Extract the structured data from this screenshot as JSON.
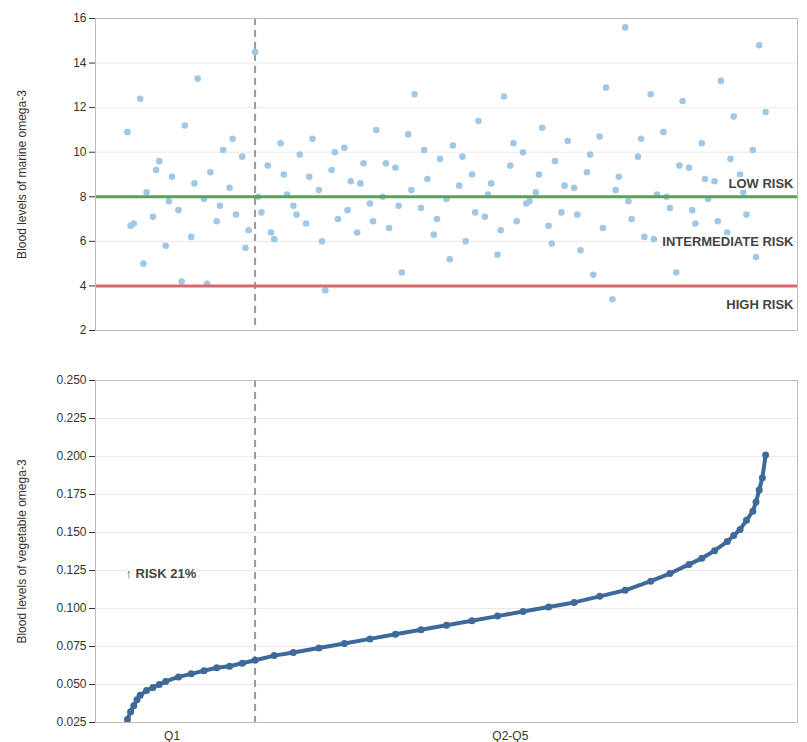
{
  "chart_data": [
    {
      "type": "scatter",
      "y_label": "Blood levels of marine omega-3",
      "marker": "circle",
      "color": "#9fc8e6",
      "grid": true,
      "tick_labels": "y",
      "xlim": [
        -5,
        105
      ],
      "ylim": [
        2,
        16
      ],
      "yticks": [
        2,
        4,
        6,
        8,
        10,
        12,
        14,
        16
      ],
      "divider": 20,
      "reference_lines": [
        {
          "value": 8,
          "color": "#5c9e5c"
        },
        {
          "value": 4,
          "color": "#d9686a"
        }
      ],
      "risk_labels": [
        "LOW RISK",
        "INTERMEDIATE RISK",
        "HIGH RISK"
      ],
      "x": [
        0,
        1,
        2,
        3,
        4,
        5,
        6,
        7,
        8,
        9,
        10,
        11,
        12,
        13,
        14,
        15,
        16,
        17,
        18,
        19,
        20,
        21,
        22,
        23,
        24,
        25,
        26,
        27,
        28,
        29,
        30,
        31,
        32,
        33,
        34,
        35,
        36,
        37,
        38,
        39,
        40,
        41,
        42,
        43,
        44,
        45,
        46,
        47,
        48,
        49,
        50,
        51,
        52,
        53,
        54,
        55,
        56,
        57,
        58,
        59,
        60,
        61,
        62,
        63,
        64,
        65,
        66,
        67,
        68,
        69,
        70,
        71,
        72,
        73,
        74,
        75,
        76,
        77,
        78,
        79,
        80,
        81,
        82,
        83,
        84,
        85,
        86,
        87,
        88,
        89,
        90,
        91,
        92,
        93,
        94,
        95,
        96,
        97,
        98,
        99,
        100,
        0.5,
        2.5,
        4.5,
        6.5,
        8.5,
        10.5,
        12.5,
        14.5,
        16.5,
        18.5,
        20.5,
        22.5,
        24.5,
        26.5,
        28.5,
        30.5,
        32.5,
        34.5,
        36.5,
        38.5,
        40.5,
        42.5,
        44.5,
        46.5,
        48.5,
        50.5,
        52.5,
        54.5,
        56.5,
        58.5,
        60.5,
        62.5,
        64.5,
        66.5,
        68.5,
        70.5,
        72.5,
        74.5,
        76.5,
        78.5,
        80.5,
        82.5,
        84.5,
        86.5,
        88.5,
        90.5,
        92.5,
        94.5,
        96.5,
        98.5
      ],
      "values": [
        10.9,
        6.8,
        12.4,
        8.2,
        7.1,
        9.6,
        5.8,
        8.9,
        7.4,
        11.2,
        6.2,
        13.3,
        7.9,
        9.1,
        6.9,
        10.1,
        8.4,
        7.2,
        9.8,
        6.5,
        14.5,
        7.3,
        9.4,
        6.1,
        10.4,
        8.1,
        7.6,
        9.9,
        6.8,
        10.6,
        8.3,
        3.8,
        9.2,
        7.0,
        10.2,
        8.7,
        6.4,
        9.5,
        7.7,
        11.0,
        8.0,
        6.6,
        9.3,
        4.6,
        10.8,
        12.6,
        7.5,
        8.8,
        6.3,
        9.7,
        7.9,
        10.3,
        8.5,
        6.0,
        9.0,
        11.4,
        7.1,
        8.6,
        5.4,
        12.5,
        9.4,
        6.9,
        10.0,
        7.8,
        8.2,
        11.1,
        6.7,
        9.6,
        7.3,
        10.5,
        8.4,
        5.6,
        9.1,
        4.5,
        10.7,
        12.9,
        3.4,
        8.9,
        15.6,
        7.0,
        9.8,
        6.2,
        12.6,
        8.1,
        10.9,
        7.5,
        4.6,
        12.3,
        9.3,
        6.8,
        10.4,
        7.9,
        8.7,
        13.2,
        6.4,
        11.6,
        9.0,
        7.2,
        10.1,
        14.8,
        11.8,
        6.7,
        5.0,
        9.2,
        7.8,
        4.2,
        8.6,
        4.1,
        7.6,
        10.6,
        5.7,
        8.0,
        6.4,
        9.0,
        7.2,
        8.9,
        6.0,
        10.0,
        7.4,
        8.6,
        6.9,
        9.5,
        7.6,
        8.3,
        10.1,
        7.0,
        5.2,
        9.8,
        7.3,
        8.1,
        6.5,
        10.4,
        7.7,
        9.0,
        5.9,
        8.5,
        7.2,
        9.9,
        6.6,
        8.3,
        7.8,
        10.6,
        6.1,
        8.0,
        9.4,
        7.4,
        8.8,
        6.9,
        9.7,
        8.2,
        5.3
      ]
    },
    {
      "type": "line",
      "y_label": "Blood levels of vegetable omega-3",
      "marker": "circle",
      "color": "#3d6a99",
      "grid": true,
      "annotation": "↑ RISK 21%",
      "xlim": [
        -5,
        105
      ],
      "xticks": [
        {
          "value": 7,
          "label": "Q1"
        },
        {
          "value": 60,
          "label": "Q2-Q5"
        }
      ],
      "ylim": [
        0.025,
        0.25
      ],
      "yticks": [
        {
          "value": 0.025,
          "label": "0.025"
        },
        {
          "value": 0.05,
          "label": "0.050"
        },
        {
          "value": 0.075,
          "label": "0.075"
        },
        {
          "value": 0.1,
          "label": "0.100"
        },
        {
          "value": 0.125,
          "label": "0.125"
        },
        {
          "value": 0.15,
          "label": "0.150"
        },
        {
          "value": 0.175,
          "label": "0.175"
        },
        {
          "value": 0.2,
          "label": "0.200"
        },
        {
          "value": 0.225,
          "label": "0.225"
        },
        {
          "value": 0.25,
          "label": "0.250"
        }
      ],
      "divider": 20,
      "x": [
        0,
        0.5,
        1,
        1.5,
        2,
        3,
        4,
        5,
        6,
        8,
        10,
        12,
        14,
        16,
        18,
        20,
        23,
        26,
        30,
        34,
        38,
        42,
        46,
        50,
        54,
        58,
        62,
        66,
        70,
        74,
        78,
        82,
        85,
        88,
        90,
        92,
        94,
        95,
        96,
        97,
        98,
        98.5,
        99,
        99.5,
        100
      ],
      "values": [
        0.027,
        0.032,
        0.036,
        0.04,
        0.043,
        0.046,
        0.048,
        0.05,
        0.052,
        0.055,
        0.057,
        0.059,
        0.061,
        0.062,
        0.064,
        0.066,
        0.069,
        0.071,
        0.074,
        0.077,
        0.08,
        0.083,
        0.086,
        0.089,
        0.092,
        0.095,
        0.098,
        0.101,
        0.104,
        0.108,
        0.112,
        0.118,
        0.123,
        0.129,
        0.133,
        0.138,
        0.144,
        0.148,
        0.152,
        0.158,
        0.164,
        0.17,
        0.178,
        0.186,
        0.201
      ]
    }
  ]
}
